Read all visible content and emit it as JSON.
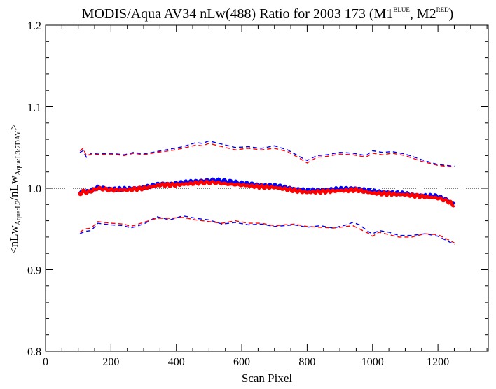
{
  "chart_data": {
    "type": "line",
    "title": "MODIS/Aqua AV34 nLw(488) Ratio for 2003 173 (M1",
    "title_sup1": "BLUE",
    "title_mid": ", M2",
    "title_sup2": "RED",
    "title_end": ")",
    "xlabel": "Scan Pixel",
    "ylabel": "<nLw",
    "ylabel_sub1": "Aqua:L2",
    "ylabel_mid": "/nLw",
    "ylabel_sub2": "Aqua:L3:7DAY",
    "ylabel_end": ">",
    "xlim": [
      0,
      1354
    ],
    "ylim": [
      0.8,
      1.2
    ],
    "xticks": [
      0,
      200,
      400,
      600,
      800,
      1000,
      1200
    ],
    "xtick_labels": [
      "0",
      "200",
      "400",
      "600",
      "800",
      "1000",
      "1200"
    ],
    "yticks": [
      0.8,
      0.9,
      1.0,
      1.1,
      1.2
    ],
    "ytick_labels": [
      "0.8",
      "0.9",
      "1.0",
      "1.1",
      "1.2"
    ],
    "reference_line": 1.0,
    "grid": false,
    "colors": {
      "blue": "#0000ff",
      "red": "#ff0000",
      "axis": "#000000"
    },
    "series": [
      {
        "name": "M1",
        "color": "#0000ff",
        "style": "thick-noisy",
        "x": [
          100,
          115,
          130,
          160,
          200,
          250,
          300,
          350,
          400,
          450,
          480,
          520,
          560,
          600,
          650,
          700,
          750,
          800,
          850,
          900,
          950,
          1000,
          1050,
          1100,
          1150,
          1200,
          1230,
          1250
        ],
        "y": [
          0.993,
          0.997,
          0.996,
          1.001,
          0.999,
          0.999,
          1.001,
          1.005,
          1.006,
          1.008,
          1.009,
          1.01,
          1.008,
          1.006,
          1.004,
          1.003,
          1.0,
          0.997,
          0.998,
          0.999,
          1.0,
          0.996,
          0.995,
          0.993,
          0.991,
          0.99,
          0.985,
          0.98
        ]
      },
      {
        "name": "M2",
        "color": "#ff0000",
        "style": "thick-noisy",
        "x": [
          100,
          115,
          130,
          160,
          200,
          250,
          300,
          350,
          400,
          450,
          480,
          520,
          560,
          600,
          650,
          700,
          750,
          800,
          850,
          900,
          950,
          1000,
          1050,
          1100,
          1150,
          1200,
          1230,
          1250
        ],
        "y": [
          0.992,
          0.996,
          0.995,
          1.0,
          0.998,
          0.998,
          1.0,
          1.004,
          1.004,
          1.006,
          1.007,
          1.007,
          1.005,
          1.004,
          1.002,
          1.001,
          0.998,
          0.995,
          0.996,
          0.997,
          0.998,
          0.994,
          0.993,
          0.992,
          0.99,
          0.988,
          0.984,
          0.979
        ]
      },
      {
        "name": "M1 upper",
        "color": "#0000ff",
        "style": "dashed",
        "x": [
          105,
          115,
          125,
          140,
          160,
          200,
          240,
          270,
          300,
          340,
          380,
          420,
          460,
          480,
          500,
          540,
          580,
          620,
          660,
          700,
          740,
          780,
          800,
          830,
          860,
          900,
          940,
          980,
          1000,
          1030,
          1060,
          1100,
          1150,
          1200,
          1250
        ],
        "y": [
          1.044,
          1.046,
          1.038,
          1.043,
          1.042,
          1.043,
          1.041,
          1.044,
          1.042,
          1.045,
          1.048,
          1.051,
          1.056,
          1.055,
          1.058,
          1.054,
          1.05,
          1.051,
          1.049,
          1.052,
          1.047,
          1.038,
          1.034,
          1.04,
          1.041,
          1.044,
          1.043,
          1.04,
          1.046,
          1.044,
          1.045,
          1.042,
          1.035,
          1.029,
          1.027
        ]
      },
      {
        "name": "M2 upper",
        "color": "#ff0000",
        "style": "dashed",
        "x": [
          105,
          115,
          125,
          140,
          160,
          200,
          240,
          270,
          300,
          340,
          380,
          420,
          460,
          480,
          500,
          540,
          580,
          620,
          660,
          700,
          740,
          780,
          800,
          830,
          860,
          900,
          940,
          980,
          1000,
          1030,
          1060,
          1100,
          1150,
          1200,
          1250
        ],
        "y": [
          1.046,
          1.049,
          1.04,
          1.042,
          1.041,
          1.042,
          1.04,
          1.043,
          1.041,
          1.044,
          1.046,
          1.049,
          1.053,
          1.052,
          1.055,
          1.051,
          1.047,
          1.049,
          1.047,
          1.049,
          1.045,
          1.036,
          1.031,
          1.038,
          1.039,
          1.042,
          1.041,
          1.038,
          1.043,
          1.041,
          1.043,
          1.04,
          1.033,
          1.028,
          1.026
        ]
      },
      {
        "name": "M1 lower",
        "color": "#0000ff",
        "style": "dashed",
        "x": [
          105,
          120,
          140,
          160,
          200,
          240,
          260,
          300,
          340,
          380,
          420,
          460,
          500,
          540,
          580,
          620,
          660,
          700,
          760,
          800,
          840,
          880,
          920,
          940,
          960,
          990,
          1000,
          1020,
          1050,
          1080,
          1120,
          1160,
          1200,
          1250
        ],
        "y": [
          0.944,
          0.947,
          0.948,
          0.957,
          0.955,
          0.954,
          0.951,
          0.956,
          0.965,
          0.961,
          0.966,
          0.963,
          0.961,
          0.956,
          0.958,
          0.955,
          0.956,
          0.953,
          0.955,
          0.952,
          0.954,
          0.951,
          0.955,
          0.958,
          0.955,
          0.946,
          0.944,
          0.948,
          0.946,
          0.942,
          0.942,
          0.944,
          0.941,
          0.931
        ]
      },
      {
        "name": "M2 lower",
        "color": "#ff0000",
        "style": "dashed",
        "x": [
          105,
          120,
          140,
          160,
          200,
          240,
          260,
          300,
          340,
          380,
          420,
          460,
          500,
          540,
          580,
          620,
          660,
          700,
          760,
          800,
          840,
          880,
          920,
          940,
          960,
          990,
          1000,
          1020,
          1050,
          1080,
          1120,
          1160,
          1200,
          1250
        ],
        "y": [
          0.946,
          0.95,
          0.951,
          0.959,
          0.957,
          0.956,
          0.953,
          0.958,
          0.963,
          0.963,
          0.964,
          0.961,
          0.959,
          0.957,
          0.96,
          0.957,
          0.957,
          0.954,
          0.956,
          0.953,
          0.952,
          0.951,
          0.953,
          0.954,
          0.95,
          0.944,
          0.941,
          0.946,
          0.943,
          0.94,
          0.94,
          0.944,
          0.943,
          0.933
        ]
      }
    ]
  }
}
